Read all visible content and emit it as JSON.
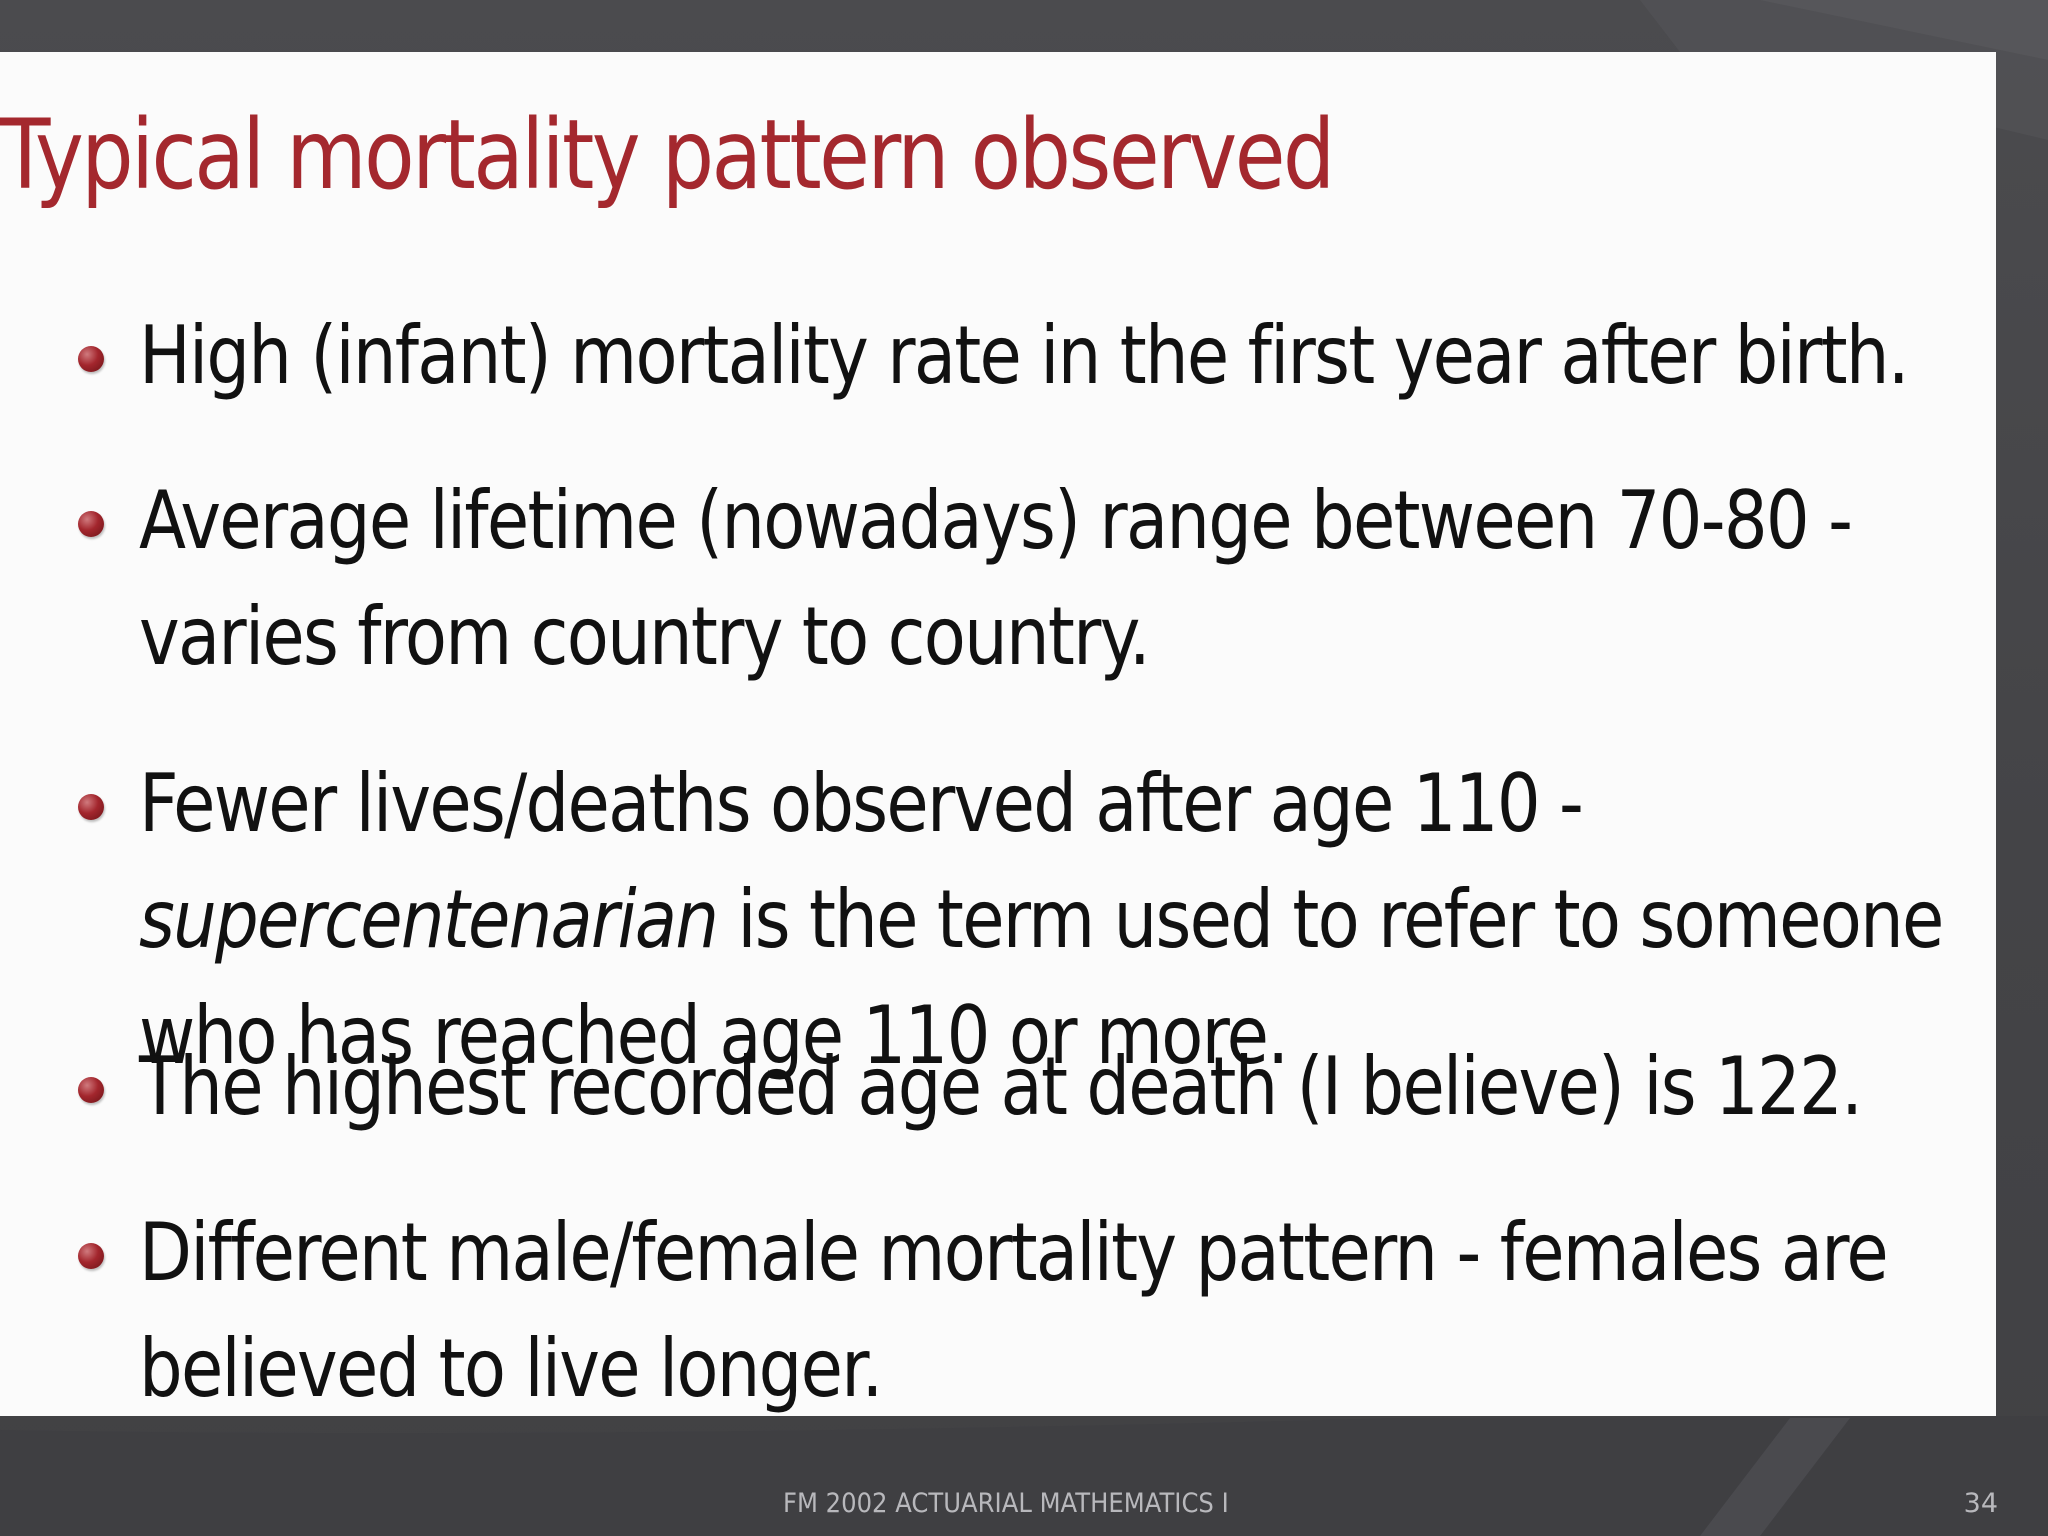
{
  "slide": {
    "title": "Typical mortality pattern observed",
    "bullets": [
      {
        "text": "High (infant) mortality rate in the first year after birth."
      },
      {
        "text": "Average lifetime (nowadays) range between 70-80 - varies from country to country."
      },
      {
        "before": "Fewer lives/deaths observed after age 110 - ",
        "emphasis": "supercentenarian",
        "after": " is the term used to refer to someone who has reached age 110 or more."
      },
      {
        "text": "The highest recorded age at death (I believe) is 122."
      },
      {
        "text": "Different male/female mortality pattern - females are believed to live longer."
      }
    ]
  },
  "footer": {
    "text": "FM 2002 ACTUARIAL MATHEMATICS I",
    "page_number": "34"
  },
  "colors": {
    "title": "#a4282e",
    "bullet_dot": "#a3262d",
    "background_frame": "#4a4a4d",
    "slide_background": "#fbfbfb"
  }
}
